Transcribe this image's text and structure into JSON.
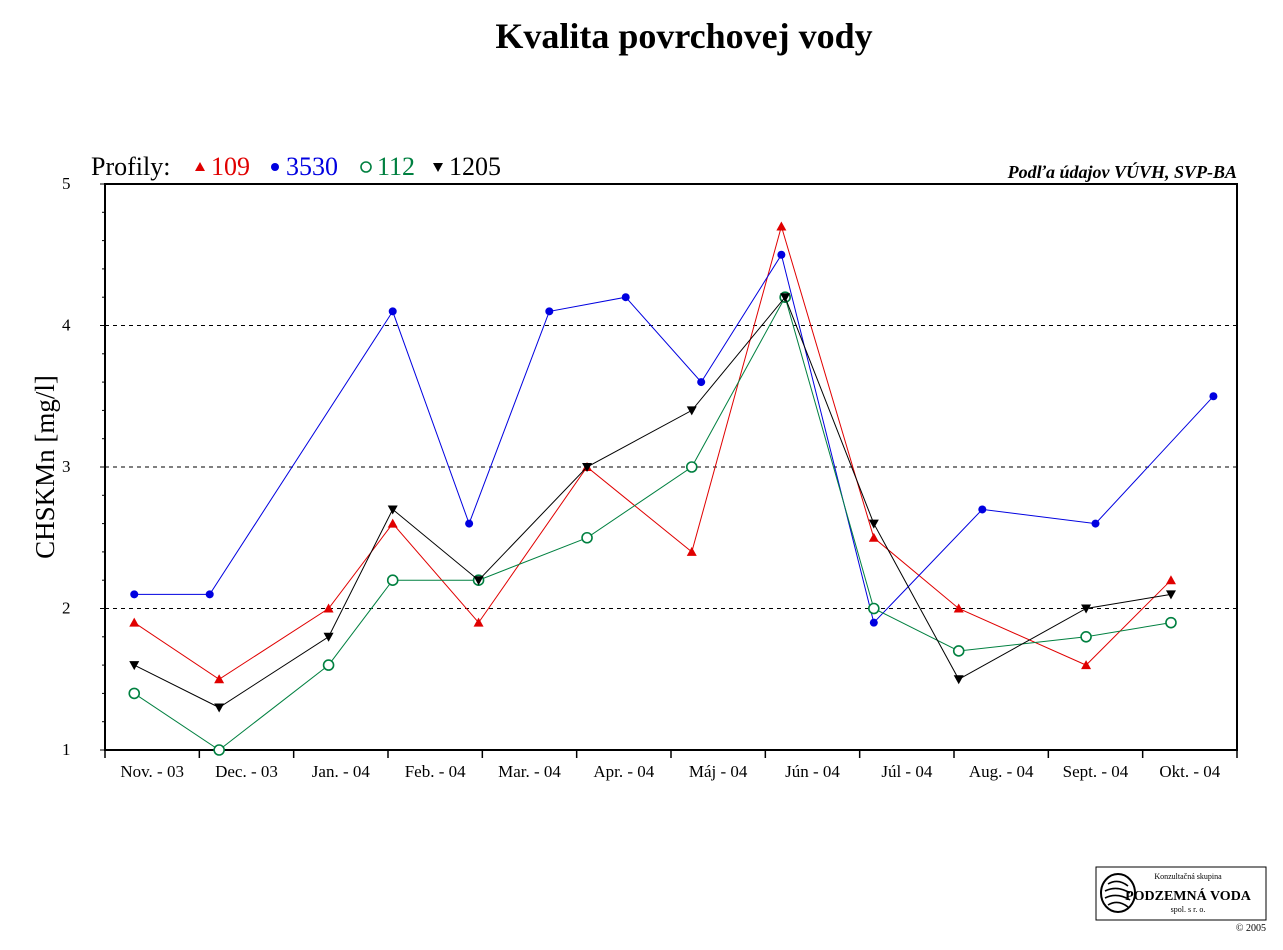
{
  "chart_data": {
    "type": "line",
    "title": "Kvalita povrchovej vody",
    "ylabel": "CHSKMn [mg/l]",
    "xlabel": "",
    "ylim": [
      1,
      5
    ],
    "yticks": [
      "1",
      "2",
      "3",
      "4",
      "5"
    ],
    "grid": "horizontal dashed at 2, 3, 4",
    "categories": [
      "Nov. - 03",
      "Dec. - 03",
      "Jan. - 04",
      "Feb. - 04",
      "Mar. - 04",
      "Apr. - 04",
      "Máj - 04",
      "Jún - 04",
      "Júl - 04",
      "Aug. - 04",
      "Sept. - 04",
      "Okt. - 04"
    ],
    "legend_label": "Profily:",
    "source_note": "Podľa údajov VÚVH, SVP-BA",
    "series": [
      {
        "name": "109",
        "color": "#e00000",
        "marker": "triangle-up",
        "points": [
          [
            0.31,
            1.9
          ],
          [
            1.21,
            1.5
          ],
          [
            2.37,
            2.0
          ],
          [
            3.05,
            2.6
          ],
          [
            3.96,
            1.9
          ],
          [
            5.11,
            3.0
          ],
          [
            6.22,
            2.4
          ],
          [
            7.17,
            4.7
          ],
          [
            8.15,
            2.5
          ],
          [
            9.05,
            2.0
          ],
          [
            10.4,
            1.6
          ],
          [
            11.3,
            2.2
          ]
        ]
      },
      {
        "name": "3530",
        "color": "#0000e0",
        "marker": "circle-filled",
        "points": [
          [
            0.31,
            2.1
          ],
          [
            1.11,
            2.1
          ],
          [
            3.05,
            4.1
          ],
          [
            3.86,
            2.6
          ],
          [
            4.71,
            4.1
          ],
          [
            5.52,
            4.2
          ],
          [
            6.32,
            3.6
          ],
          [
            7.17,
            4.5
          ],
          [
            8.15,
            1.9
          ],
          [
            9.3,
            2.7
          ],
          [
            10.5,
            2.6
          ],
          [
            11.75,
            3.5
          ]
        ]
      },
      {
        "name": "112",
        "color": "#008040",
        "marker": "circle-open",
        "points": [
          [
            0.31,
            1.4
          ],
          [
            1.21,
            1.0
          ],
          [
            2.37,
            1.6
          ],
          [
            3.05,
            2.2
          ],
          [
            3.96,
            2.2
          ],
          [
            5.11,
            2.5
          ],
          [
            6.22,
            3.0
          ],
          [
            7.21,
            4.2
          ],
          [
            8.15,
            2.0
          ],
          [
            9.05,
            1.7
          ],
          [
            10.4,
            1.8
          ],
          [
            11.3,
            1.9
          ]
        ]
      },
      {
        "name": "1205",
        "color": "#000000",
        "marker": "triangle-down",
        "points": [
          [
            0.31,
            1.6
          ],
          [
            1.21,
            1.3
          ],
          [
            2.37,
            1.8
          ],
          [
            3.05,
            2.7
          ],
          [
            3.96,
            2.2
          ],
          [
            5.11,
            3.0
          ],
          [
            6.22,
            3.4
          ],
          [
            7.21,
            4.2
          ],
          [
            8.15,
            2.6
          ],
          [
            9.05,
            1.5
          ],
          [
            10.4,
            2.0
          ],
          [
            11.3,
            2.1
          ]
        ]
      }
    ]
  },
  "logo": {
    "top_text": "Konzultačná skupina",
    "name": "PODZEMNÁ VODA",
    "sub_text": "spol. s r. o.",
    "copyright": "© 2005"
  }
}
